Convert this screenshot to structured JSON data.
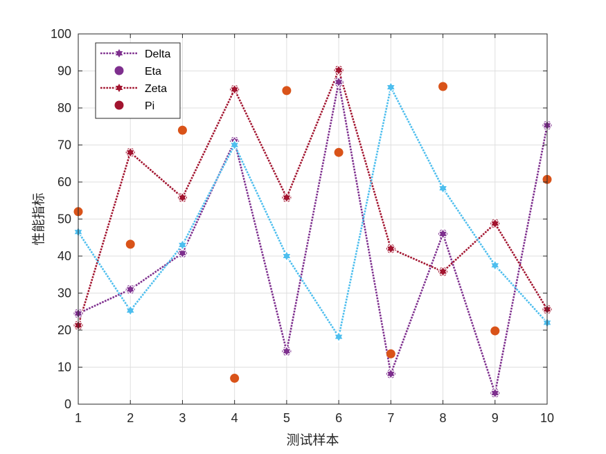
{
  "chart_data": {
    "type": "line",
    "title": "",
    "xlabel": "测试样本",
    "ylabel": "性能指标",
    "x": [
      1,
      2,
      3,
      4,
      5,
      6,
      7,
      8,
      9,
      10
    ],
    "xlim": [
      1,
      10
    ],
    "ylim": [
      0,
      100
    ],
    "xticks": [
      "1",
      "2",
      "3",
      "4",
      "5",
      "6",
      "7",
      "8",
      "9",
      "10"
    ],
    "yticks": [
      "0",
      "10",
      "20",
      "30",
      "40",
      "50",
      "60",
      "70",
      "80",
      "90",
      "100"
    ],
    "grid": true,
    "legend_position": "top-left",
    "series": [
      {
        "name": "Delta",
        "style": "dotted-line",
        "marker": "hexagram",
        "color": "#7E2F8E",
        "values": [
          24.5,
          31,
          40.8,
          71,
          14.3,
          87,
          8.2,
          46,
          3,
          75.3
        ]
      },
      {
        "name": "Eta",
        "style": "markers",
        "marker": "circle",
        "color": "#7E2F8E",
        "values": [
          24.5,
          31,
          40.8,
          71,
          14.3,
          87,
          8.2,
          46,
          3,
          75.3
        ]
      },
      {
        "name": "Zeta",
        "style": "dotted-line",
        "marker": "hexagram",
        "color": "#A2142F",
        "values": [
          21.3,
          68,
          55.8,
          85,
          55.8,
          90.2,
          42,
          35.8,
          48.8,
          25.6
        ]
      },
      {
        "name": "Pi",
        "style": "markers",
        "marker": "circle",
        "color": "#A2142F",
        "values": [
          21.3,
          68,
          55.8,
          85,
          55.8,
          90.2,
          42,
          35.8,
          48.8,
          25.6
        ]
      },
      {
        "name": "",
        "style": "dotted-line",
        "marker": "hexagram",
        "color": "#4DBEEE",
        "in_legend": false,
        "values": [
          46.5,
          25.3,
          43,
          70,
          40,
          18.2,
          85.6,
          58.3,
          37.5,
          22
        ]
      },
      {
        "name": "",
        "style": "markers",
        "marker": "circle",
        "color": "#D95319",
        "in_legend": false,
        "values": [
          52,
          43.2,
          74,
          7,
          84.7,
          68,
          13.6,
          85.8,
          19.8,
          60.7
        ]
      }
    ]
  }
}
